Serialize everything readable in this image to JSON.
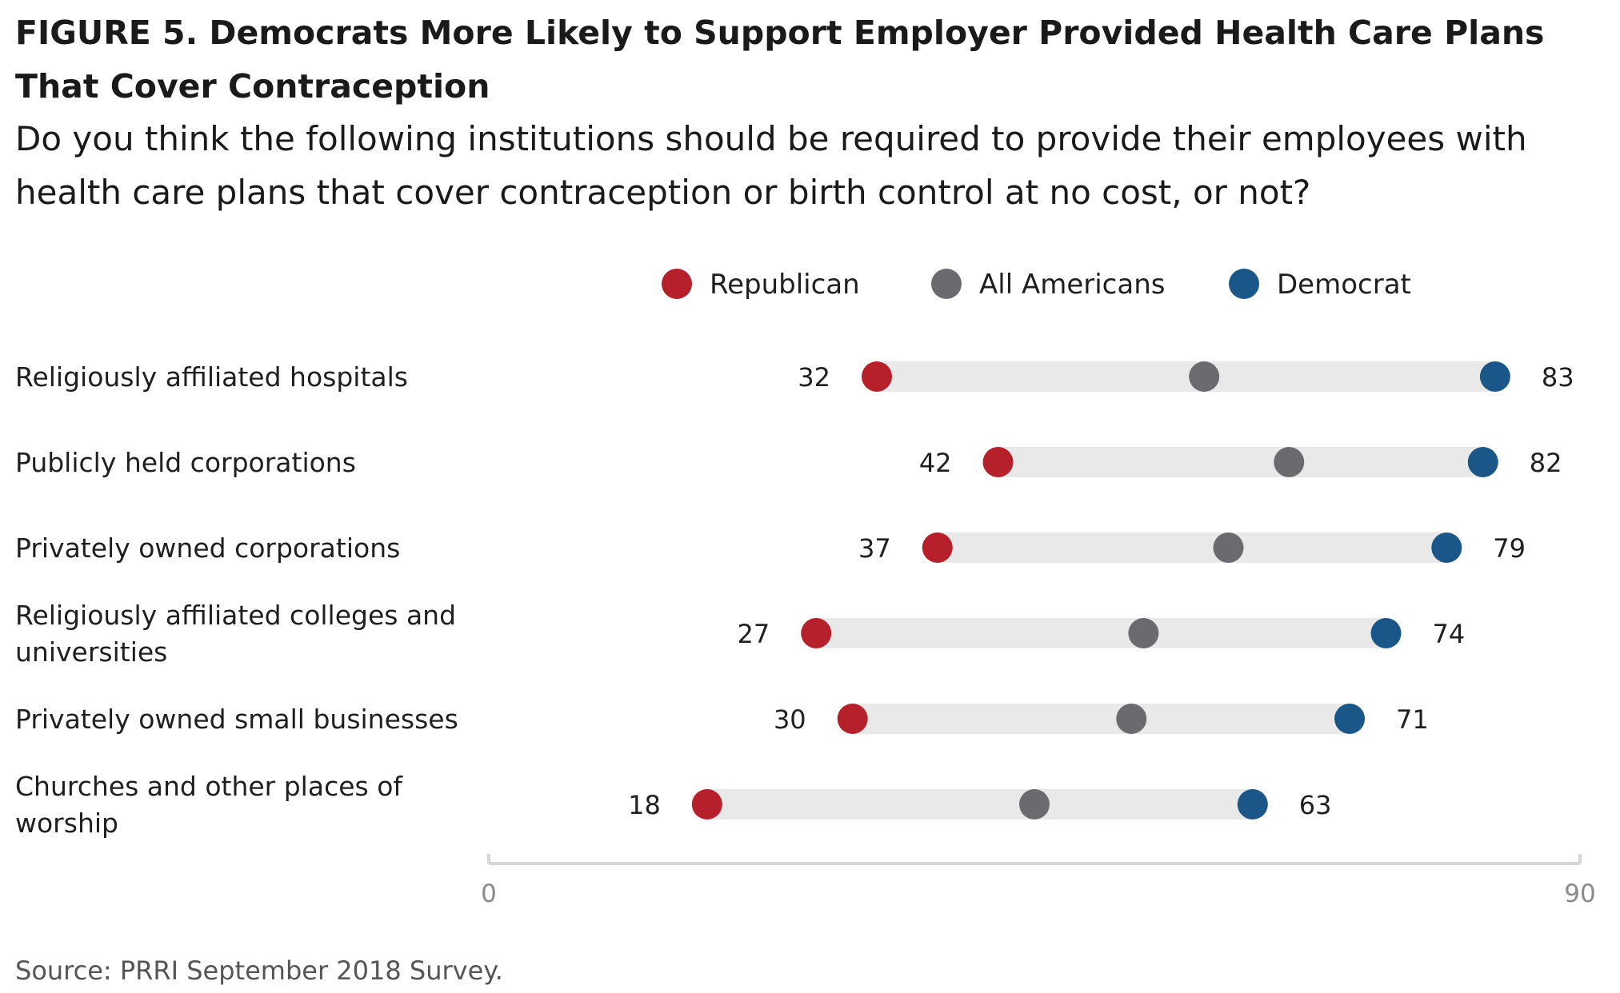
{
  "figure": {
    "title": "FIGURE 5.  Democrats More Likely to Support Employer Provided Health Care Plans That Cover Contraception",
    "subtitle": "Do you think the following institutions should be required to provide their employees with health care plans that cover contraception or birth control at no cost, or not?",
    "source": "Source: PRRI September 2018 Survey."
  },
  "chart_data": {
    "type": "dot",
    "title": "FIGURE 5.  Democrats More Likely to Support Employer Provided Health Care Plans That Cover Contraception",
    "subtitle": "Do you think the following institutions should be required to provide their employees with health care plans that cover contraception or birth control at no cost, or not?",
    "xlim": [
      0,
      90
    ],
    "x_ticks": [
      "0",
      "90"
    ],
    "grid": false,
    "legend_position": "top",
    "categories": [
      [
        "Religiously affiliated hospitals"
      ],
      [
        "Publicly held corporations"
      ],
      [
        "Privately owned corporations"
      ],
      [
        "Religiously affiliated colleges and",
        "universities"
      ],
      [
        "Privately owned small businesses"
      ],
      [
        "Churches and other places of",
        "worship"
      ]
    ],
    "series": [
      {
        "name": "Republican",
        "color": "#b5202a",
        "values": [
          32,
          42,
          37,
          27,
          30,
          18
        ],
        "labeled": true
      },
      {
        "name": "All Americans",
        "color": "#696b6e",
        "values": [
          59,
          66,
          61,
          54,
          53,
          45
        ],
        "labeled": false
      },
      {
        "name": "Democrat",
        "color": "#1b5689",
        "values": [
          83,
          82,
          79,
          74,
          71,
          63
        ],
        "labeled": true
      }
    ],
    "range_bar_color": "#e8e9e8",
    "axis_color": "#d5d6d5"
  }
}
